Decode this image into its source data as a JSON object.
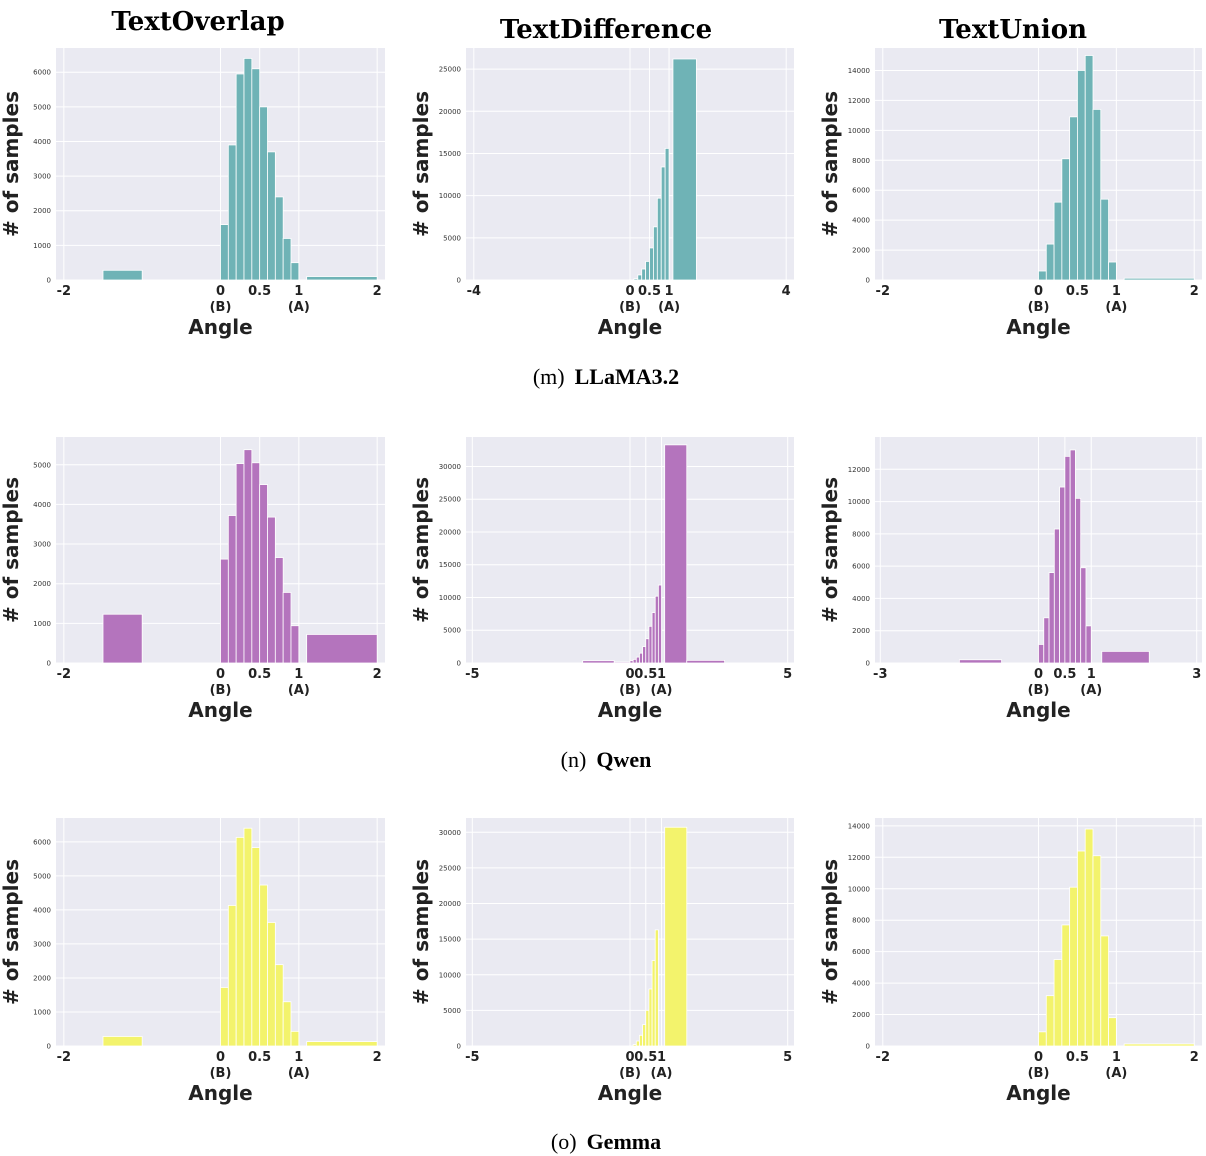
{
  "column_titles": [
    "TextOverlap",
    "TextDifference",
    "TextUnion"
  ],
  "row_captions": [
    {
      "prefix": "(m)",
      "name": "LLaMA3.2"
    },
    {
      "prefix": "(n)",
      "name": "Qwen"
    },
    {
      "prefix": "(o)",
      "name": "Gemma"
    }
  ],
  "colors": {
    "LLaMA3.2": "#6fb3b6",
    "Qwen": "#b474bd",
    "Gemma": "#f3f36c"
  },
  "chart_data": [
    {
      "type": "bar",
      "row": 0,
      "col": 0,
      "color": "#6fb3b6",
      "xlim": [
        -2.1,
        2.1
      ],
      "ylim": [
        0,
        6700
      ],
      "yticks": [
        0,
        1000,
        2000,
        3000,
        4000,
        5000,
        6000
      ],
      "xticks": [
        {
          "v": -2,
          "label": "-2"
        },
        {
          "v": 0,
          "label": "0",
          "sub": "(B)"
        },
        {
          "v": 0.5,
          "label": "0.5"
        },
        {
          "v": 1,
          "label": "1",
          "sub": "(A)"
        },
        {
          "v": 2,
          "label": "2"
        }
      ],
      "xlabel": "Angle",
      "ylabel": "# of samples",
      "bars": [
        [
          -1.5,
          -1.0,
          280
        ],
        [
          0.0,
          0.1,
          1600
        ],
        [
          0.1,
          0.2,
          3900
        ],
        [
          0.2,
          0.3,
          5950
        ],
        [
          0.3,
          0.4,
          6400
        ],
        [
          0.4,
          0.5,
          6100
        ],
        [
          0.5,
          0.6,
          5000
        ],
        [
          0.6,
          0.7,
          3700
        ],
        [
          0.7,
          0.8,
          2400
        ],
        [
          0.8,
          0.9,
          1200
        ],
        [
          0.9,
          1.0,
          500
        ],
        [
          1.1,
          2.0,
          100
        ]
      ]
    },
    {
      "type": "bar",
      "row": 0,
      "col": 1,
      "color": "#6fb3b6",
      "xlim": [
        -4.2,
        4.2
      ],
      "ylim": [
        0,
        27500
      ],
      "yticks": [
        0,
        5000,
        10000,
        15000,
        20000,
        25000
      ],
      "xticks": [
        {
          "v": -4,
          "label": "-4"
        },
        {
          "v": 0,
          "label": "0",
          "sub": "(B)"
        },
        {
          "v": 0.5,
          "label": "0.5"
        },
        {
          "v": 1,
          "label": "1",
          "sub": "(A)"
        },
        {
          "v": 4,
          "label": "4"
        }
      ],
      "xlabel": "Angle",
      "ylabel": "# of samples",
      "bars": [
        [
          0.1,
          0.2,
          150
        ],
        [
          0.2,
          0.3,
          600
        ],
        [
          0.3,
          0.4,
          1300
        ],
        [
          0.4,
          0.5,
          2200
        ],
        [
          0.5,
          0.6,
          3800
        ],
        [
          0.6,
          0.7,
          6300
        ],
        [
          0.7,
          0.8,
          9700
        ],
        [
          0.8,
          0.9,
          13400
        ],
        [
          0.9,
          1.0,
          15600
        ],
        [
          1.1,
          1.7,
          26200
        ]
      ]
    },
    {
      "type": "bar",
      "row": 0,
      "col": 2,
      "color": "#6fb3b6",
      "xlim": [
        -2.1,
        2.1
      ],
      "ylim": [
        0,
        15500
      ],
      "yticks": [
        0,
        2000,
        4000,
        6000,
        8000,
        10000,
        12000,
        14000
      ],
      "xticks": [
        {
          "v": -2,
          "label": "-2"
        },
        {
          "v": 0,
          "label": "0",
          "sub": "(B)"
        },
        {
          "v": 0.5,
          "label": "0.5"
        },
        {
          "v": 1,
          "label": "1",
          "sub": "(A)"
        },
        {
          "v": 2,
          "label": "2"
        }
      ],
      "xlabel": "Angle",
      "ylabel": "# of samples",
      "bars": [
        [
          0.0,
          0.1,
          600
        ],
        [
          0.1,
          0.2,
          2400
        ],
        [
          0.2,
          0.3,
          5200
        ],
        [
          0.3,
          0.4,
          8100
        ],
        [
          0.4,
          0.5,
          10900
        ],
        [
          0.5,
          0.6,
          14000
        ],
        [
          0.6,
          0.7,
          15000
        ],
        [
          0.7,
          0.8,
          11400
        ],
        [
          0.8,
          0.9,
          5400
        ],
        [
          0.9,
          1.0,
          1200
        ],
        [
          1.1,
          2.0,
          120
        ]
      ]
    },
    {
      "type": "bar",
      "row": 1,
      "col": 0,
      "color": "#b474bd",
      "xlim": [
        -2.1,
        2.1
      ],
      "ylim": [
        0,
        5700
      ],
      "yticks": [
        0,
        1000,
        2000,
        3000,
        4000,
        5000
      ],
      "xticks": [
        {
          "v": -2,
          "label": "-2"
        },
        {
          "v": 0,
          "label": "0",
          "sub": "(B)"
        },
        {
          "v": 0.5,
          "label": "0.5"
        },
        {
          "v": 1,
          "label": "1",
          "sub": "(A)"
        },
        {
          "v": 2,
          "label": "2"
        }
      ],
      "xlabel": "Angle",
      "ylabel": "# of samples",
      "bars": [
        [
          -1.5,
          -1.0,
          1230
        ],
        [
          0.0,
          0.1,
          2620
        ],
        [
          0.1,
          0.2,
          3720
        ],
        [
          0.2,
          0.3,
          5030
        ],
        [
          0.3,
          0.4,
          5380
        ],
        [
          0.4,
          0.5,
          5050
        ],
        [
          0.5,
          0.6,
          4500
        ],
        [
          0.6,
          0.7,
          3680
        ],
        [
          0.7,
          0.8,
          2660
        ],
        [
          0.8,
          0.9,
          1780
        ],
        [
          0.9,
          1.0,
          940
        ],
        [
          1.1,
          2.0,
          720
        ]
      ]
    },
    {
      "type": "bar",
      "row": 1,
      "col": 1,
      "color": "#b474bd",
      "xlim": [
        -5.2,
        5.2
      ],
      "ylim": [
        0,
        34500
      ],
      "yticks": [
        0,
        5000,
        10000,
        15000,
        20000,
        25000,
        30000
      ],
      "xticks": [
        {
          "v": -5,
          "label": "-5"
        },
        {
          "v": 0,
          "label": "0",
          "sub": "(B)"
        },
        {
          "v": 0.5,
          "label": "0.5"
        },
        {
          "v": 1,
          "label": "1",
          "sub": "(A)"
        },
        {
          "v": 5,
          "label": "5"
        }
      ],
      "xlabel": "Angle",
      "ylabel": "# of samples",
      "bars": [
        [
          -1.5,
          -0.5,
          350
        ],
        [
          -0.5,
          0.0,
          150
        ],
        [
          0.0,
          0.1,
          350
        ],
        [
          0.1,
          0.2,
          550
        ],
        [
          0.2,
          0.3,
          900
        ],
        [
          0.3,
          0.4,
          1500
        ],
        [
          0.4,
          0.5,
          2500
        ],
        [
          0.5,
          0.6,
          3700
        ],
        [
          0.6,
          0.7,
          5600
        ],
        [
          0.7,
          0.8,
          7700
        ],
        [
          0.8,
          0.9,
          10200
        ],
        [
          0.9,
          1.0,
          11900
        ],
        [
          1.1,
          1.8,
          33300
        ],
        [
          1.8,
          3.0,
          400
        ]
      ]
    },
    {
      "type": "bar",
      "row": 1,
      "col": 2,
      "color": "#b474bd",
      "xlim": [
        -3.1,
        3.1
      ],
      "ylim": [
        0,
        14000
      ],
      "yticks": [
        0,
        2000,
        4000,
        6000,
        8000,
        10000,
        12000
      ],
      "xticks": [
        {
          "v": -3,
          "label": "-3"
        },
        {
          "v": 0,
          "label": "0",
          "sub": "(B)"
        },
        {
          "v": 0.5,
          "label": "0.5"
        },
        {
          "v": 1,
          "label": "1",
          "sub": "(A)"
        },
        {
          "v": 3,
          "label": "3"
        }
      ],
      "xlabel": "Angle",
      "ylabel": "# of samples",
      "bars": [
        [
          -1.5,
          -0.7,
          200
        ],
        [
          0.0,
          0.1,
          1150
        ],
        [
          0.1,
          0.2,
          2800
        ],
        [
          0.2,
          0.3,
          5600
        ],
        [
          0.3,
          0.4,
          8300
        ],
        [
          0.4,
          0.5,
          10900
        ],
        [
          0.5,
          0.6,
          12800
        ],
        [
          0.6,
          0.7,
          13200
        ],
        [
          0.7,
          0.8,
          10200
        ],
        [
          0.8,
          0.9,
          5900
        ],
        [
          0.9,
          1.0,
          2300
        ],
        [
          1.2,
          2.1,
          720
        ]
      ]
    },
    {
      "type": "bar",
      "row": 2,
      "col": 0,
      "color": "#f3f36c",
      "xlim": [
        -2.1,
        2.1
      ],
      "ylim": [
        0,
        6700
      ],
      "yticks": [
        0,
        1000,
        2000,
        3000,
        4000,
        5000,
        6000
      ],
      "xticks": [
        {
          "v": -2,
          "label": "-2"
        },
        {
          "v": 0,
          "label": "0",
          "sub": "(B)"
        },
        {
          "v": 0.5,
          "label": "0.5"
        },
        {
          "v": 1,
          "label": "1",
          "sub": "(A)"
        },
        {
          "v": 2,
          "label": "2"
        }
      ],
      "xlabel": "Angle",
      "ylabel": "# of samples",
      "bars": [
        [
          -1.5,
          -1.0,
          280
        ],
        [
          0.0,
          0.1,
          1720
        ],
        [
          0.1,
          0.2,
          4130
        ],
        [
          0.2,
          0.3,
          6130
        ],
        [
          0.3,
          0.4,
          6400
        ],
        [
          0.4,
          0.5,
          5830
        ],
        [
          0.5,
          0.6,
          4730
        ],
        [
          0.6,
          0.7,
          3630
        ],
        [
          0.7,
          0.8,
          2390
        ],
        [
          0.8,
          0.9,
          1300
        ],
        [
          0.9,
          1.0,
          430
        ],
        [
          1.1,
          2.0,
          130
        ]
      ]
    },
    {
      "type": "bar",
      "row": 2,
      "col": 1,
      "color": "#f3f36c",
      "xlim": [
        -5.2,
        5.2
      ],
      "ylim": [
        0,
        32000
      ],
      "yticks": [
        0,
        5000,
        10000,
        15000,
        20000,
        25000,
        30000
      ],
      "xticks": [
        {
          "v": -5,
          "label": "-5"
        },
        {
          "v": 0,
          "label": "0",
          "sub": "(B)"
        },
        {
          "v": 0.5,
          "label": "0.5"
        },
        {
          "v": 1,
          "label": "1",
          "sub": "(A)"
        },
        {
          "v": 5,
          "label": "5"
        }
      ],
      "xlabel": "Angle",
      "ylabel": "# of samples",
      "bars": [
        [
          0.1,
          0.2,
          200
        ],
        [
          0.2,
          0.3,
          700
        ],
        [
          0.3,
          0.4,
          1500
        ],
        [
          0.4,
          0.5,
          3000
        ],
        [
          0.5,
          0.6,
          5000
        ],
        [
          0.6,
          0.7,
          8000
        ],
        [
          0.7,
          0.8,
          12000
        ],
        [
          0.8,
          0.9,
          16300
        ],
        [
          1.1,
          1.8,
          30700
        ]
      ]
    },
    {
      "type": "bar",
      "row": 2,
      "col": 2,
      "color": "#f3f36c",
      "xlim": [
        -2.1,
        2.1
      ],
      "ylim": [
        0,
        14500
      ],
      "yticks": [
        0,
        2000,
        4000,
        6000,
        8000,
        10000,
        12000,
        14000
      ],
      "xticks": [
        {
          "v": -2,
          "label": "-2"
        },
        {
          "v": 0,
          "label": "0",
          "sub": "(B)"
        },
        {
          "v": 0.5,
          "label": "0.5"
        },
        {
          "v": 1,
          "label": "1",
          "sub": "(A)"
        },
        {
          "v": 2,
          "label": "2"
        }
      ],
      "xlabel": "Angle",
      "ylabel": "# of samples",
      "bars": [
        [
          0.0,
          0.1,
          900
        ],
        [
          0.1,
          0.2,
          3200
        ],
        [
          0.2,
          0.3,
          5500
        ],
        [
          0.3,
          0.4,
          7700
        ],
        [
          0.4,
          0.5,
          10100
        ],
        [
          0.5,
          0.6,
          12400
        ],
        [
          0.6,
          0.7,
          13800
        ],
        [
          0.7,
          0.8,
          12100
        ],
        [
          0.8,
          0.9,
          7000
        ],
        [
          0.9,
          1.0,
          1800
        ],
        [
          1.1,
          2.0,
          130
        ]
      ]
    }
  ]
}
